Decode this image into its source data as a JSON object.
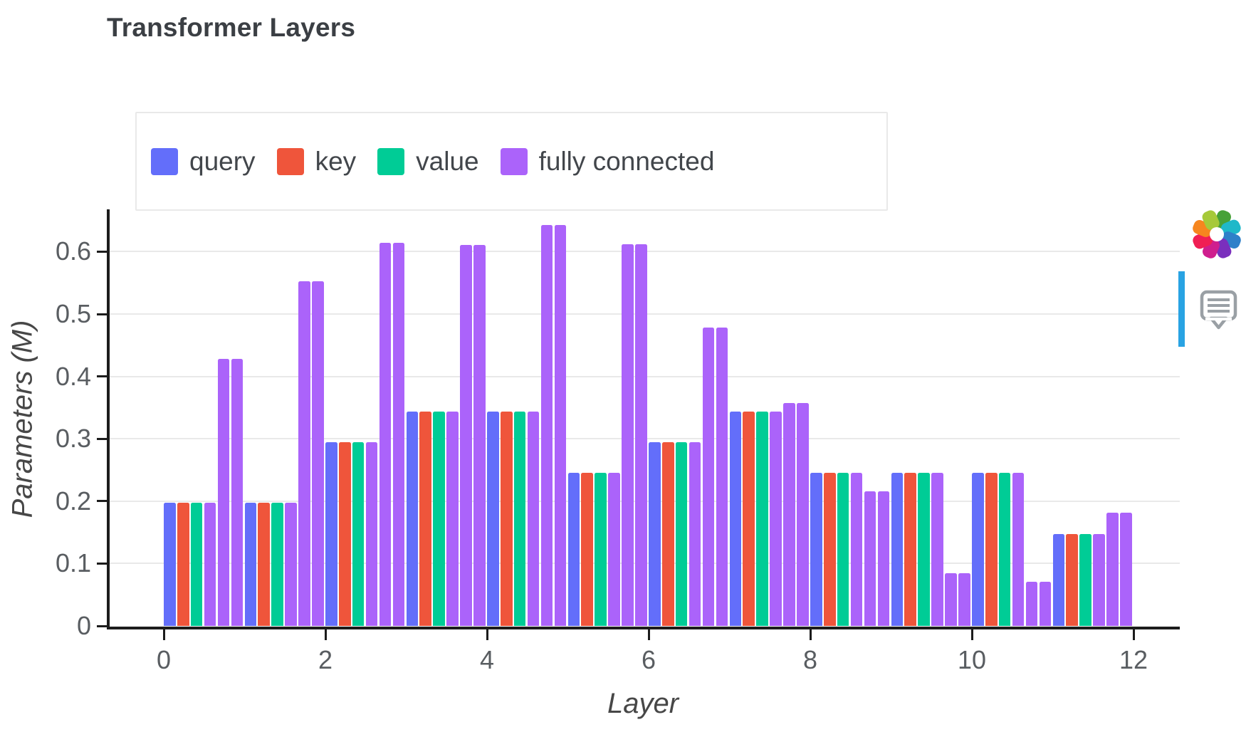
{
  "page": {
    "background": "#ffffff"
  },
  "chart_data": {
    "type": "bar",
    "title": "Transformer Layers",
    "xlabel": "Layer",
    "ylabel": "Parameters (M)",
    "x_tick_values": [
      0,
      2,
      4,
      6,
      8,
      10,
      12
    ],
    "x_tick_labels": [
      "0",
      "2",
      "4",
      "6",
      "8",
      "10",
      "12"
    ],
    "y_tick_values": [
      0,
      0.1,
      0.2,
      0.3,
      0.4,
      0.5,
      0.6
    ],
    "y_tick_labels": [
      "0",
      "0.1",
      "0.2",
      "0.3",
      "0.4",
      "0.5",
      "0.6"
    ],
    "ylim": [
      0,
      0.669
    ],
    "xlim": [
      -0.7,
      12.57
    ],
    "grid": true,
    "legend_position": "top-left-inside",
    "categories": [
      0,
      1,
      2,
      3,
      4,
      5,
      6,
      7,
      8,
      9,
      10,
      11
    ],
    "bars_per_layer": [
      "query",
      "key",
      "value",
      "fully connected",
      "fully connected",
      "fully connected"
    ],
    "legend": [
      {
        "label": "query",
        "color": "#636EFA"
      },
      {
        "label": "key",
        "color": "#EF553B"
      },
      {
        "label": "value",
        "color": "#00CC96"
      },
      {
        "label": "fully connected",
        "color": "#AB63FA"
      }
    ],
    "series": [
      {
        "name": "query",
        "color": "#636EFA",
        "values": [
          0.197,
          0.197,
          0.295,
          0.344,
          0.344,
          0.245,
          0.295,
          0.344,
          0.245,
          0.245,
          0.245,
          0.147
        ]
      },
      {
        "name": "key",
        "color": "#EF553B",
        "values": [
          0.197,
          0.197,
          0.295,
          0.344,
          0.344,
          0.245,
          0.295,
          0.344,
          0.245,
          0.245,
          0.245,
          0.147
        ]
      },
      {
        "name": "value",
        "color": "#00CC96",
        "values": [
          0.197,
          0.197,
          0.295,
          0.344,
          0.344,
          0.245,
          0.295,
          0.344,
          0.245,
          0.245,
          0.245,
          0.147
        ]
      },
      {
        "name": "fully connected",
        "color": "#AB63FA",
        "values": [
          [
            0.197,
            0.428,
            0.428
          ],
          [
            0.197,
            0.552,
            0.552
          ],
          [
            0.295,
            0.614,
            0.614
          ],
          [
            0.344,
            0.611,
            0.611
          ],
          [
            0.344,
            0.643,
            0.643
          ],
          [
            0.245,
            0.612,
            0.612
          ],
          [
            0.295,
            0.478,
            0.478
          ],
          [
            0.344,
            0.357,
            0.357
          ],
          [
            0.245,
            0.216,
            0.216
          ],
          [
            0.245,
            0.085,
            0.085
          ],
          [
            0.245,
            0.071,
            0.071
          ],
          [
            0.147,
            0.182,
            0.182
          ]
        ]
      }
    ]
  },
  "modebar": {
    "logo_icon": "plotly-logo",
    "comment_icon": "comment-bubble-icon",
    "accent_color": "#29a3e3",
    "logo_colors": [
      "#47a138",
      "#1fb8c9",
      "#2f80c9",
      "#7a2fbd",
      "#cf1e8e",
      "#f01f54",
      "#f6861f",
      "#a6c939"
    ]
  }
}
